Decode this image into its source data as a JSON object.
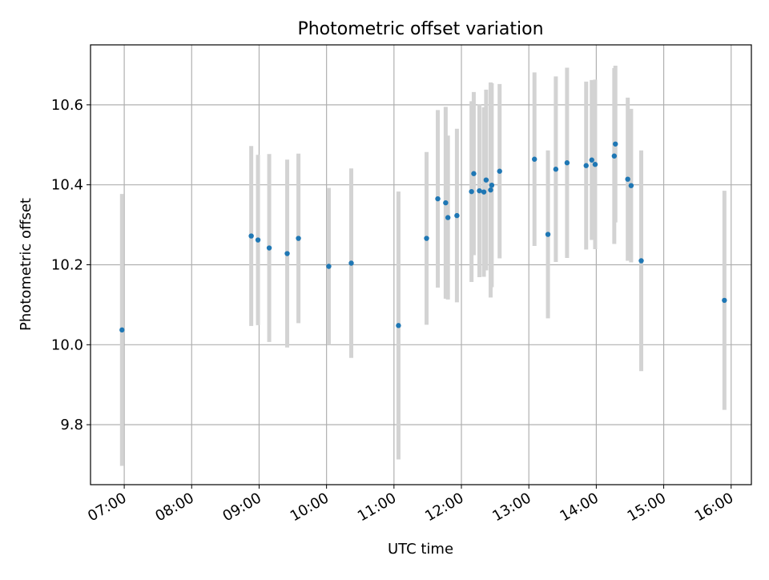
{
  "chart_data": {
    "type": "scatter",
    "title": "Photometric offset variation",
    "xlabel": "UTC time",
    "ylabel": "Photometric offset",
    "xlim": [
      "06:30",
      "16:18"
    ],
    "ylim": [
      9.65,
      10.75
    ],
    "x_ticks": [
      "07:00",
      "08:00",
      "09:00",
      "10:00",
      "11:00",
      "12:00",
      "13:00",
      "14:00",
      "15:00",
      "16:00"
    ],
    "y_ticks": [
      "9.8",
      "10.0",
      "10.2",
      "10.4",
      "10.6"
    ],
    "grid": true,
    "colors": {
      "point": "#1f77b4",
      "error_bar": "#d3d3d3",
      "grid": "#b0b0b0"
    },
    "series": [
      {
        "x": [
          "06:58",
          "08:53",
          "08:59",
          "09:09",
          "09:25",
          "09:35",
          "10:02",
          "10:22",
          "11:04",
          "11:29",
          "11:39",
          "11:46",
          "11:48",
          "11:56",
          "12:09",
          "12:11",
          "12:16",
          "12:20",
          "12:22",
          "12:26",
          "12:27",
          "12:34",
          "13:05",
          "13:17",
          "13:24",
          "13:34",
          "13:51",
          "13:56",
          "13:59",
          "14:16",
          "14:17",
          "14:28",
          "14:31",
          "14:40",
          "15:54"
        ],
        "y": [
          10.037,
          10.272,
          10.262,
          10.242,
          10.228,
          10.266,
          10.196,
          10.204,
          10.048,
          10.266,
          10.365,
          10.355,
          10.318,
          10.323,
          10.383,
          10.428,
          10.385,
          10.382,
          10.412,
          10.387,
          10.399,
          10.434,
          10.464,
          10.276,
          10.439,
          10.455,
          10.448,
          10.462,
          10.451,
          10.472,
          10.502,
          10.414,
          10.398,
          10.21,
          10.111
        ],
        "y_err": [
          0.34,
          0.225,
          0.213,
          0.235,
          0.235,
          0.212,
          0.196,
          0.237,
          0.335,
          0.216,
          0.222,
          0.24,
          0.205,
          0.217,
          0.226,
          0.204,
          0.216,
          0.212,
          0.226,
          0.269,
          0.255,
          0.218,
          0.217,
          0.21,
          0.232,
          0.238,
          0.21,
          0.2,
          0.212,
          0.22,
          0.196,
          0.204,
          0.192,
          0.276,
          0.274
        ]
      }
    ]
  }
}
